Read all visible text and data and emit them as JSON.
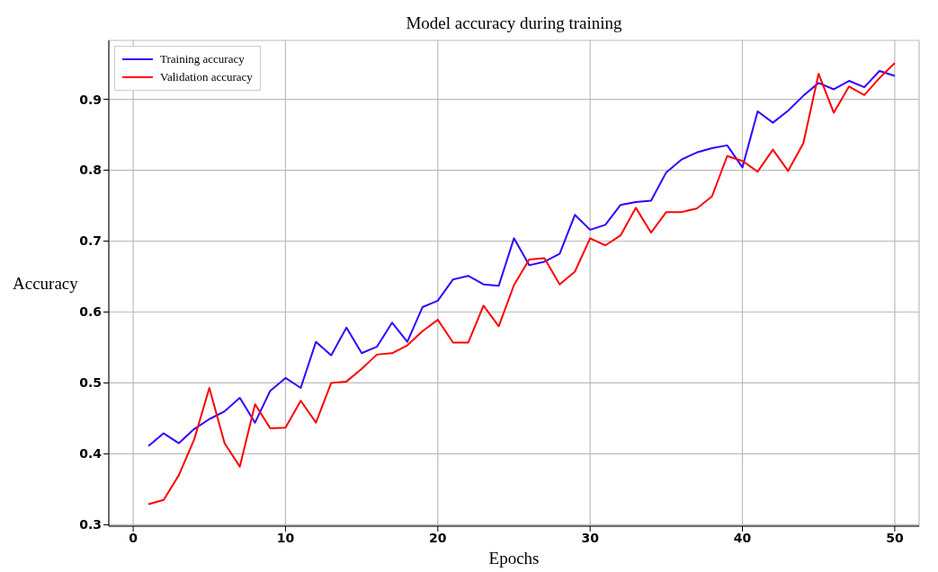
{
  "chart_data": {
    "type": "line",
    "title": "Model accuracy during training",
    "xlabel": "Epochs",
    "ylabel": "Accuracy",
    "x": [
      1,
      2,
      3,
      4,
      5,
      6,
      7,
      8,
      9,
      10,
      11,
      12,
      13,
      14,
      15,
      16,
      17,
      18,
      19,
      20,
      21,
      22,
      23,
      24,
      25,
      26,
      27,
      28,
      29,
      30,
      31,
      32,
      33,
      34,
      35,
      36,
      37,
      38,
      39,
      40,
      41,
      42,
      43,
      44,
      45,
      46,
      47,
      48,
      49,
      50
    ],
    "series": [
      {
        "name": "Training accuracy",
        "color": "#3300ff",
        "values": [
          0.411,
          0.429,
          0.415,
          0.435,
          0.449,
          0.46,
          0.479,
          0.444,
          0.489,
          0.507,
          0.493,
          0.558,
          0.539,
          0.578,
          0.542,
          0.551,
          0.585,
          0.558,
          0.607,
          0.616,
          0.646,
          0.651,
          0.639,
          0.637,
          0.704,
          0.666,
          0.671,
          0.682,
          0.737,
          0.716,
          0.723,
          0.751,
          0.755,
          0.757,
          0.797,
          0.815,
          0.825,
          0.831,
          0.835,
          0.804,
          0.883,
          0.867,
          0.884,
          0.905,
          0.923,
          0.914,
          0.926,
          0.917,
          0.94,
          0.933
        ]
      },
      {
        "name": "Validation accuracy",
        "color": "#ff0000",
        "values": [
          0.329,
          0.335,
          0.37,
          0.42,
          0.493,
          0.415,
          0.382,
          0.47,
          0.436,
          0.437,
          0.475,
          0.444,
          0.5,
          0.502,
          0.52,
          0.54,
          0.542,
          0.553,
          0.573,
          0.589,
          0.557,
          0.557,
          0.609,
          0.58,
          0.638,
          0.674,
          0.676,
          0.639,
          0.657,
          0.704,
          0.694,
          0.708,
          0.747,
          0.712,
          0.741,
          0.741,
          0.746,
          0.763,
          0.82,
          0.813,
          0.798,
          0.829,
          0.799,
          0.838,
          0.936,
          0.881,
          0.918,
          0.906,
          0.93,
          0.951
        ]
      }
    ],
    "xlim": [
      -1.6,
      51.6
    ],
    "xticks": [
      0,
      10,
      20,
      30,
      40,
      50
    ],
    "ylim": [
      0.298,
      0.983
    ],
    "yticks": [
      0.3,
      0.4,
      0.5,
      0.6,
      0.7,
      0.8,
      0.9
    ],
    "grid": true,
    "legend": "top left",
    "marker": "none",
    "line_style": "solid"
  }
}
